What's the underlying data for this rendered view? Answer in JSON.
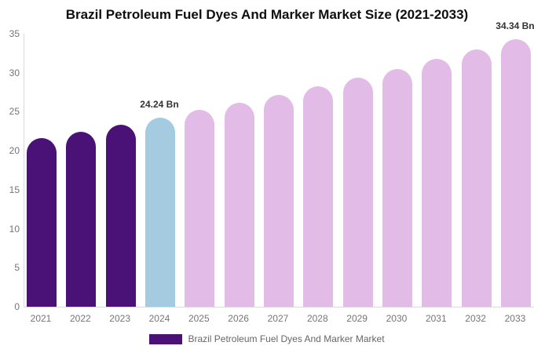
{
  "title": "Brazil Petroleum Fuel Dyes And Marker Market Size (2021-2033)",
  "legend": {
    "label": "Brazil Petroleum Fuel Dyes And Marker Market",
    "swatch_color": "#4a1277"
  },
  "chart_data": {
    "type": "bar",
    "title": "Brazil Petroleum Fuel Dyes And Marker Market Size (2021-2033)",
    "categories": [
      "2021",
      "2022",
      "2023",
      "2024",
      "2025",
      "2026",
      "2027",
      "2028",
      "2029",
      "2030",
      "2031",
      "2032",
      "2033"
    ],
    "values": [
      21.6,
      22.4,
      23.3,
      24.24,
      25.2,
      26.2,
      27.2,
      28.3,
      29.4,
      30.5,
      31.8,
      33.0,
      34.34
    ],
    "unit": "Bn",
    "bar_colors": [
      "#4a1277",
      "#4a1277",
      "#4a1277",
      "#a4cbe0",
      "#e2bce6",
      "#e2bce6",
      "#e2bce6",
      "#e2bce6",
      "#e2bce6",
      "#e2bce6",
      "#e2bce6",
      "#e2bce6",
      "#e2bce6"
    ],
    "data_labels": [
      {
        "year": "2024",
        "text": "24.24 Bn"
      },
      {
        "year": "2033",
        "text": "34.34 Bn"
      }
    ],
    "xlabel": "",
    "ylabel": "",
    "ylim": [
      0,
      35
    ],
    "yticks": [
      0,
      5,
      10,
      15,
      20,
      25,
      30,
      35
    ],
    "grid": false,
    "legend_position": "bottom"
  }
}
